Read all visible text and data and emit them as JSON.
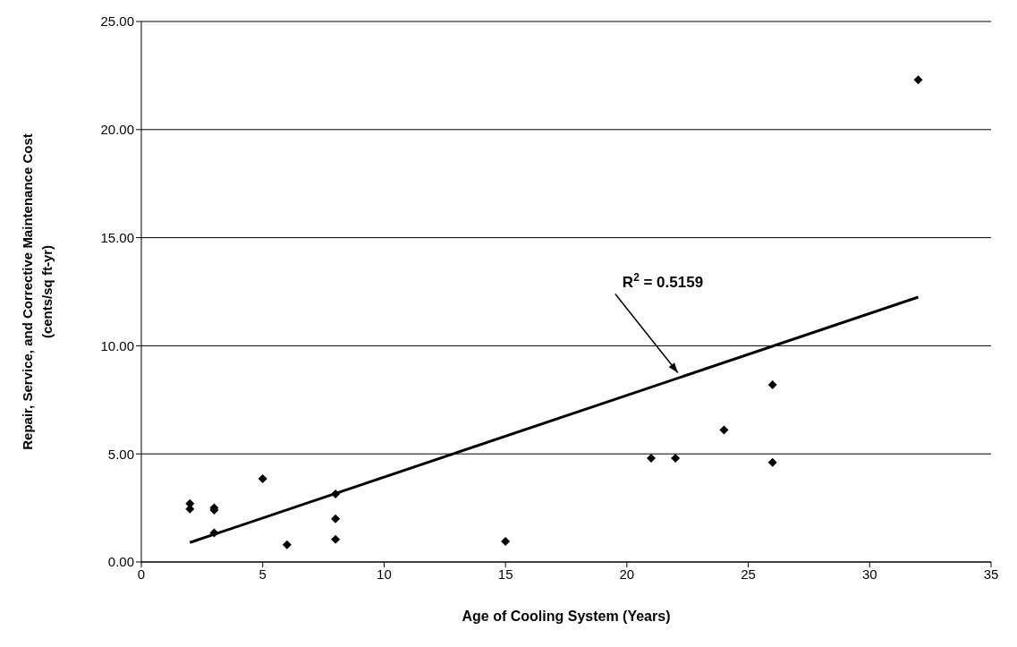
{
  "chart_data": {
    "type": "scatter",
    "xlabel": "Age of Cooling System (Years)",
    "ylabel": "Repair, Service, and Corrective Maintenance Cost\n(cents/sq ft-yr)",
    "series": [
      {
        "color": "#000000",
        "marker": "diamond",
        "x": [
          2,
          2,
          3,
          3,
          3,
          5,
          6,
          8,
          8,
          8,
          15,
          21,
          22,
          24,
          26,
          26,
          32
        ],
        "values": [
          2.7,
          2.45,
          2.5,
          2.4,
          1.35,
          3.85,
          0.8,
          3.15,
          2.0,
          1.05,
          0.95,
          4.8,
          4.8,
          6.1,
          8.2,
          4.6,
          22.3
        ]
      },
      {
        "type": "line",
        "color": "#000000",
        "marker": "none",
        "x": [
          2,
          32
        ],
        "values": [
          0.9,
          12.25
        ]
      }
    ],
    "annotations": [
      "R$^{2}$ = 0.5159"
    ],
    "xlim": [
      0,
      35
    ],
    "xticks": [
      0,
      5,
      10,
      15,
      20,
      25,
      30,
      35
    ],
    "ylim": [
      0,
      25
    ],
    "yticks": [
      {
        "value": 0,
        "label": "0.00"
      },
      {
        "value": 5,
        "label": "5.00"
      },
      {
        "value": 10,
        "label": "10.00"
      },
      {
        "value": 15,
        "label": "15.00"
      },
      {
        "value": 20,
        "label": "20.00"
      },
      {
        "value": 25,
        "label": "25.00"
      }
    ],
    "grid": "y"
  }
}
